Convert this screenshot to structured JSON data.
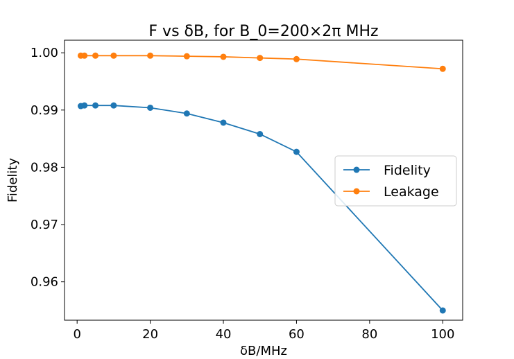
{
  "chart_data": {
    "type": "line",
    "title": "F vs δB, for B_0=200×2π MHz",
    "xlabel": "δB/MHz",
    "ylabel": "Fidelity",
    "xlim": [
      -3.45,
      105.45
    ],
    "ylim": [
      0.9533,
      1.0022
    ],
    "xticks": [
      0,
      20,
      40,
      60,
      80,
      100
    ],
    "xtick_labels": [
      "0",
      "20",
      "40",
      "60",
      "80",
      "100"
    ],
    "yticks": [
      0.96,
      0.97,
      0.98,
      0.99,
      1.0
    ],
    "ytick_labels": [
      "0.96",
      "0.97",
      "0.98",
      "0.99",
      "1.00"
    ],
    "grid": false,
    "legend_position": "center-right",
    "x": [
      1,
      2,
      5,
      10,
      20,
      30,
      40,
      50,
      60,
      100
    ],
    "series": [
      {
        "name": "Fidelity",
        "color": "#1f77b4",
        "marker": "circle",
        "values": [
          0.9907,
          0.9908,
          0.9908,
          0.9908,
          0.9904,
          0.9894,
          0.9878,
          0.9858,
          0.9827,
          0.955
        ]
      },
      {
        "name": "Leakage",
        "color": "#ff7f0e",
        "marker": "circle",
        "values": [
          0.9995,
          0.9995,
          0.9995,
          0.9995,
          0.9995,
          0.9994,
          0.9993,
          0.9991,
          0.9989,
          0.9972
        ]
      }
    ]
  }
}
